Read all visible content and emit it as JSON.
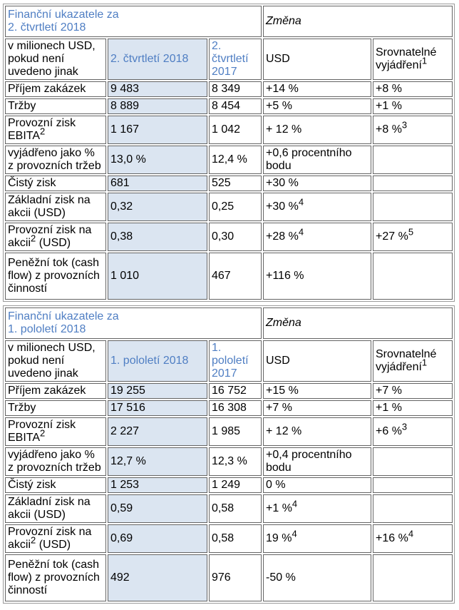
{
  "colors": {
    "accent_blue_text": "#4f7ec3",
    "highlight_cell_bg": "#dbe5f1",
    "cell_border": "#646464",
    "table_border": "#9a9a9a"
  },
  "tables": [
    {
      "title": [
        "Finanční ukazatele za",
        {
          "br": true
        },
        "2. čtvrtletí 2018"
      ],
      "change_label": "Změna",
      "unit_label": "v milionech USD, pokud není uvedeno jinak",
      "col_current": "2. čtvrtletí 2018",
      "col_prior": "2. čtvrtletí 2017",
      "col_usd": "USD",
      "col_comparable": [
        "Srovnatelné vyjádření",
        {
          "sup": "1"
        }
      ],
      "rows": [
        [
          [
            "Příjem zakázek"
          ],
          [
            "9 483"
          ],
          [
            "8 349"
          ],
          [
            "+14 %"
          ],
          [
            "+8 %"
          ]
        ],
        [
          [
            "Tržby"
          ],
          [
            "8 889"
          ],
          [
            "8 454"
          ],
          [
            "+5 %"
          ],
          [
            "+1 %"
          ]
        ],
        [
          [
            "Provozní zisk EBITA",
            {
              "sup": "2"
            }
          ],
          [
            "1 167"
          ],
          [
            "1 042"
          ],
          [
            "+ 12 %"
          ],
          [
            "+8 %",
            {
              "sup": "3"
            }
          ]
        ],
        [
          [
            "vyjádřeno jako % z provozních tržeb"
          ],
          [
            "13,0 %"
          ],
          [
            "12,4 %"
          ],
          [
            "+0,6 procentního bodu"
          ],
          []
        ],
        [
          [
            "Čistý zisk"
          ],
          [
            "681"
          ],
          [
            "525"
          ],
          [
            "+30 %"
          ],
          []
        ],
        [
          [
            "Základní zisk na akcii (USD)"
          ],
          [
            "0,32"
          ],
          [
            "0,25"
          ],
          [
            "+30 %",
            {
              "sup": "4"
            }
          ],
          []
        ],
        [
          [
            "Provozní zisk na akcii",
            {
              "sup": "2"
            },
            " (USD)"
          ],
          [
            "0,38"
          ],
          [
            "0,30"
          ],
          [
            "+28 %",
            {
              "sup": "4"
            }
          ],
          [
            "+27 %",
            {
              "sup": "5"
            }
          ]
        ],
        [
          [
            "Peněžní tok (cash flow) z provozních činností"
          ],
          [
            "1 010"
          ],
          [
            "467"
          ],
          [
            "+116 %"
          ],
          []
        ]
      ]
    },
    {
      "title": [
        "Finanční ukazatele za",
        {
          "br": true
        },
        "1. pololetí 2018"
      ],
      "change_label": "Změna",
      "unit_label": "v milionech USD, pokud není uvedeno jinak",
      "col_current": "1. pololetí 2018",
      "col_prior": "1. pololetí 2017",
      "col_usd": "USD",
      "col_comparable": [
        "Srovnatelné vyjádření",
        {
          "sup": "1"
        }
      ],
      "rows": [
        [
          [
            "Příjem zakázek"
          ],
          [
            "19 255"
          ],
          [
            "16 752"
          ],
          [
            "+15 %"
          ],
          [
            "+7 %"
          ]
        ],
        [
          [
            "Tržby"
          ],
          [
            "17 516"
          ],
          [
            "16 308"
          ],
          [
            "+7 %"
          ],
          [
            "+1 %"
          ]
        ],
        [
          [
            "Provozní zisk EBITA",
            {
              "sup": "2"
            }
          ],
          [
            "2 227"
          ],
          [
            "1 985"
          ],
          [
            "+ 12 %"
          ],
          [
            "+6 %",
            {
              "sup": "3"
            }
          ]
        ],
        [
          [
            "vyjádřeno jako % z provozních tržeb"
          ],
          [
            "12,7 %"
          ],
          [
            "12,3 %"
          ],
          [
            "+0,4 procentního bodu"
          ],
          []
        ],
        [
          [
            "Čistý zisk"
          ],
          [
            "1 253"
          ],
          [
            "1 249"
          ],
          [
            "0 %"
          ],
          []
        ],
        [
          [
            "Základní zisk na akcii (USD)"
          ],
          [
            "0,59"
          ],
          [
            "0,58"
          ],
          [
            "+1 %",
            {
              "sup": "4"
            }
          ],
          []
        ],
        [
          [
            "Provozní zisk na akcii",
            {
              "sup": "2"
            },
            " (USD)"
          ],
          [
            "0,69"
          ],
          [
            "0,58"
          ],
          [
            "19 %",
            {
              "sup": "4"
            }
          ],
          [
            "+16 %",
            {
              "sup": "4"
            }
          ]
        ],
        [
          [
            "Peněžní tok (cash flow) z provozních činností"
          ],
          [
            "492"
          ],
          [
            "976"
          ],
          [
            "-50 %"
          ],
          []
        ]
      ]
    }
  ]
}
